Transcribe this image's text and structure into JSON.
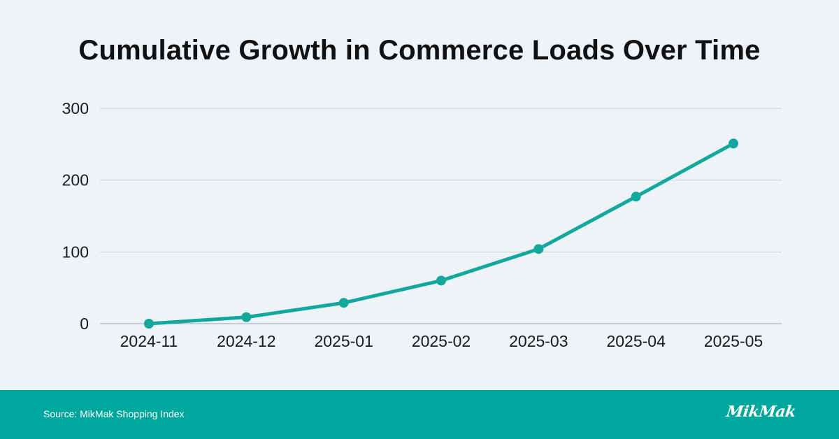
{
  "colors": {
    "background": "#eef3f8",
    "line": "#13a89e",
    "footer": "#00a79d",
    "grid": "#c8ced6"
  },
  "chart_data": {
    "type": "line",
    "title": "Cumulative Growth in Commerce Loads Over Time",
    "xlabel": "",
    "ylabel": "",
    "categories": [
      "2024-11",
      "2024-12",
      "2025-01",
      "2025-02",
      "2025-03",
      "2025-04",
      "2025-05"
    ],
    "series": [
      {
        "name": "Cumulative Growth",
        "values": [
          0,
          9,
          29,
          60,
          104,
          177,
          251
        ]
      }
    ],
    "ylim": [
      0,
      300
    ],
    "yticks": [
      0,
      100,
      200,
      300
    ],
    "grid": true,
    "markers": true
  },
  "footer": {
    "source": "Source: MikMak Shopping Index",
    "logo": "MikMak"
  }
}
